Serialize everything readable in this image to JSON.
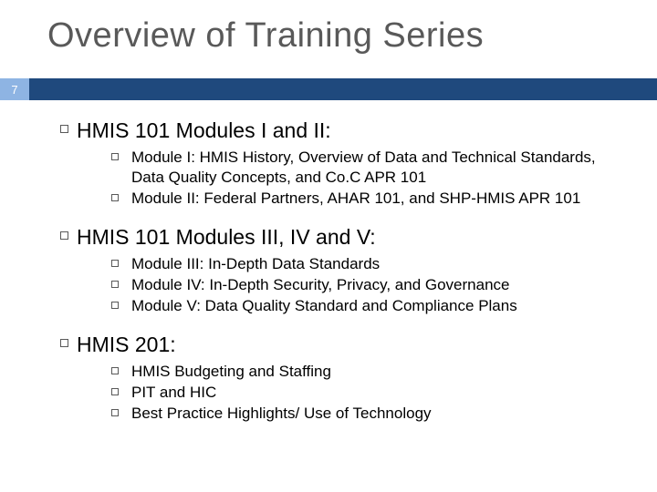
{
  "title": "Overview of Training Series",
  "page_number": "7",
  "accent_color": "#1f497d",
  "badge_color": "#8eb4e3",
  "title_color": "#595959",
  "body_color": "#000000",
  "title_fontsize": 38,
  "lvl1_fontsize": 23,
  "lvl2_fontsize": 17,
  "sections": [
    {
      "heading": "HMIS 101 Modules I and II:",
      "items": [
        "Module I: HMIS History, Overview of Data and Technical Standards, Data Quality Concepts, and Co.C APR 101",
        "Module II:  Federal Partners, AHAR 101, and SHP-HMIS APR 101"
      ]
    },
    {
      "heading": "HMIS 101 Modules III, IV and V:",
      "items": [
        "Module III: In-Depth Data Standards",
        "Module IV: In-Depth Security, Privacy, and Governance",
        "Module V: Data Quality Standard and Compliance Plans"
      ]
    },
    {
      "heading": "HMIS 201:",
      "items": [
        "HMIS Budgeting and Staffing",
        "PIT and HIC",
        "Best Practice Highlights/ Use of Technology"
      ]
    }
  ]
}
